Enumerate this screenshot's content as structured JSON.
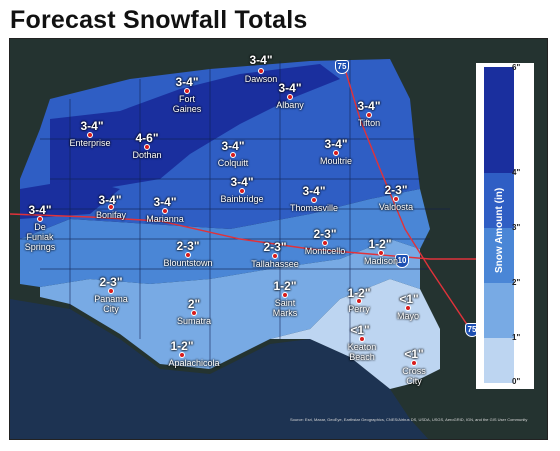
{
  "title": "Forecast Snowfall Totals",
  "legend": {
    "title": "Snow Amount (in)",
    "ticks": [
      "6\"",
      "4\"",
      "3\"",
      "2\"",
      "1\"",
      "0\""
    ],
    "colors": [
      "#1a2f9e",
      "#2f5ec4",
      "#4a86d6",
      "#78aae4",
      "#bdd5f1"
    ]
  },
  "highways": [
    "75",
    "10",
    "75"
  ],
  "forecast_points": [
    {
      "city": "Dawson",
      "amount": "3-4\""
    },
    {
      "city": "Fort Gaines",
      "amount": "3-4\""
    },
    {
      "city": "Albany",
      "amount": "3-4\""
    },
    {
      "city": "Tifton",
      "amount": "3-4\""
    },
    {
      "city": "Enterprise",
      "amount": "3-4\""
    },
    {
      "city": "Dothan",
      "amount": "4-6\""
    },
    {
      "city": "Colquitt",
      "amount": "3-4\""
    },
    {
      "city": "Moultrie",
      "amount": "3-4\""
    },
    {
      "city": "Bainbridge",
      "amount": "3-4\""
    },
    {
      "city": "Thomasville",
      "amount": "3-4\""
    },
    {
      "city": "Valdosta",
      "amount": "2-3\""
    },
    {
      "city": "Bonifay",
      "amount": "3-4\""
    },
    {
      "city": "Marianna",
      "amount": "3-4\""
    },
    {
      "city": "De Funiak Springs",
      "amount": "3-4\""
    },
    {
      "city": "Blountstown",
      "amount": "2-3\""
    },
    {
      "city": "Tallahassee",
      "amount": "2-3\""
    },
    {
      "city": "Monticello",
      "amount": "2-3\""
    },
    {
      "city": "Madison",
      "amount": "1-2\""
    },
    {
      "city": "Panama City",
      "amount": "2-3\""
    },
    {
      "city": "Sumatra",
      "amount": "2\""
    },
    {
      "city": "Saint Marks",
      "amount": "1-2\""
    },
    {
      "city": "Perry",
      "amount": "1-2\""
    },
    {
      "city": "Mayo",
      "amount": "<1\""
    },
    {
      "city": "Apalachicola",
      "amount": "1-2\""
    },
    {
      "city": "Keaton Beach",
      "amount": "<1\""
    },
    {
      "city": "Cross City",
      "amount": "<1\""
    }
  ],
  "attribution": "Source: Esri, Maxar, GeoEye, Earthstar Geographics, CNES/Airbus DS, USDA, USGS, AeroGRID, IGN, and the GIS User Community"
}
